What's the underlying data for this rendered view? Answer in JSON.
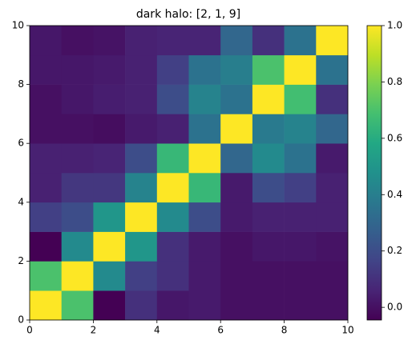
{
  "chart_data": {
    "type": "heatmap",
    "title": "dark halo: [2, 1, 9]",
    "colormap": "viridis",
    "z": [
      [
        1.0,
        0.7,
        -0.045,
        0.1,
        0.02,
        0.03,
        0.0,
        0.0,
        0.0,
        0.0
      ],
      [
        0.7,
        1.0,
        0.45,
        0.15,
        0.1,
        0.03,
        0.0,
        0.0,
        0.0,
        0.0
      ],
      [
        -0.045,
        0.45,
        1.0,
        0.5,
        0.1,
        0.03,
        0.0,
        0.02,
        0.02,
        0.01
      ],
      [
        0.15,
        0.2,
        0.5,
        1.0,
        0.45,
        0.2,
        0.03,
        0.05,
        0.05,
        0.05
      ],
      [
        0.05,
        0.12,
        0.12,
        0.42,
        1.0,
        0.65,
        0.03,
        0.2,
        0.15,
        0.05
      ],
      [
        0.05,
        0.05,
        0.06,
        0.2,
        0.65,
        1.0,
        0.3,
        0.45,
        0.35,
        0.03
      ],
      [
        0.0,
        0.0,
        -0.01,
        0.03,
        0.05,
        0.35,
        1.0,
        0.38,
        0.42,
        0.3
      ],
      [
        0.0,
        0.02,
        0.04,
        0.05,
        0.2,
        0.42,
        0.35,
        1.0,
        0.68,
        0.1
      ],
      [
        0.02,
        0.02,
        0.03,
        0.05,
        0.15,
        0.35,
        0.4,
        0.7,
        1.0,
        0.35
      ],
      [
        0.02,
        0.0,
        0.01,
        0.05,
        0.06,
        0.06,
        0.3,
        0.1,
        0.35,
        1.0
      ]
    ],
    "xlim": [
      0,
      10
    ],
    "ylim": [
      0,
      10
    ],
    "xticks": [
      0,
      2,
      4,
      6,
      8,
      10
    ],
    "yticks": [
      0,
      2,
      4,
      6,
      8,
      10
    ],
    "clim": [
      -0.045,
      1.0
    ],
    "cticks": [
      {
        "value": 0,
        "label": "0.0"
      },
      0.2,
      0.4,
      0.6,
      0.8,
      {
        "value": 1,
        "label": "1.0"
      }
    ]
  }
}
